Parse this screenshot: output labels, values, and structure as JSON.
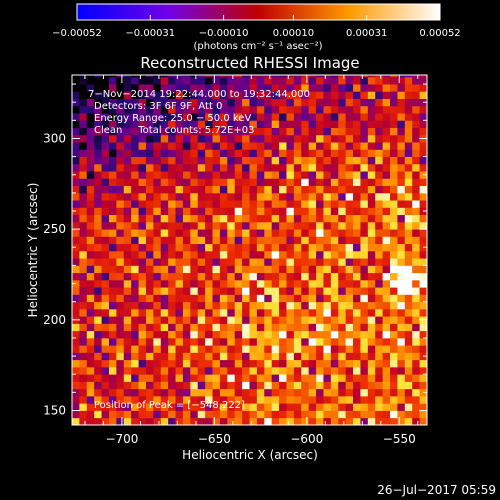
{
  "chart_data": {
    "type": "heatmap",
    "title": "Reconstructed RHESSI Image",
    "xlabel": "Heliocentric X (arcsec)",
    "ylabel": "Heliocentric Y (arcsec)",
    "xlim": [
      -727,
      -535
    ],
    "ylim": [
      142,
      335
    ],
    "x_ticks": [
      -700,
      -650,
      -600,
      -550
    ],
    "x_tick_labels": [
      "−700",
      "−650",
      "−600",
      "−550"
    ],
    "y_ticks": [
      150,
      200,
      250,
      300
    ],
    "y_tick_labels": [
      "150",
      "200",
      "250",
      "300"
    ],
    "colorbar": {
      "range": [
        -0.00052,
        0.00052
      ],
      "ticks": [
        -0.00052,
        -0.00031,
        -0.0001,
        0.0001,
        0.00031,
        0.00052
      ],
      "tick_labels": [
        "−0.00052",
        "−0.00031",
        "−0.00010",
        "0.00010",
        "0.00031",
        "0.00052"
      ],
      "units_label": "(photons cm⁻² s⁻¹ asec⁻²)",
      "colormap": [
        "#0000ff",
        "#8000ff",
        "#ff0000",
        "#ffaa00",
        "#ffffff"
      ]
    },
    "info_lines": [
      "7−Nov−2014 19:22:44.000 to 19:32:44.000",
      "Detectors: 3F 6F 9F, Att 0",
      "Energy Range: 25.0 − 50.0 keV",
      "Clean     Total counts: 5.72E+03"
    ],
    "peak_label": "Position of Peak = [−548,222]",
    "peak": {
      "x": -548,
      "y": 222
    },
    "grid": false,
    "frame_color": "#ffffff",
    "pixel_size_arcsec": 4
  },
  "footer": {
    "timestamp": "26−Jul−2017 05:59"
  }
}
